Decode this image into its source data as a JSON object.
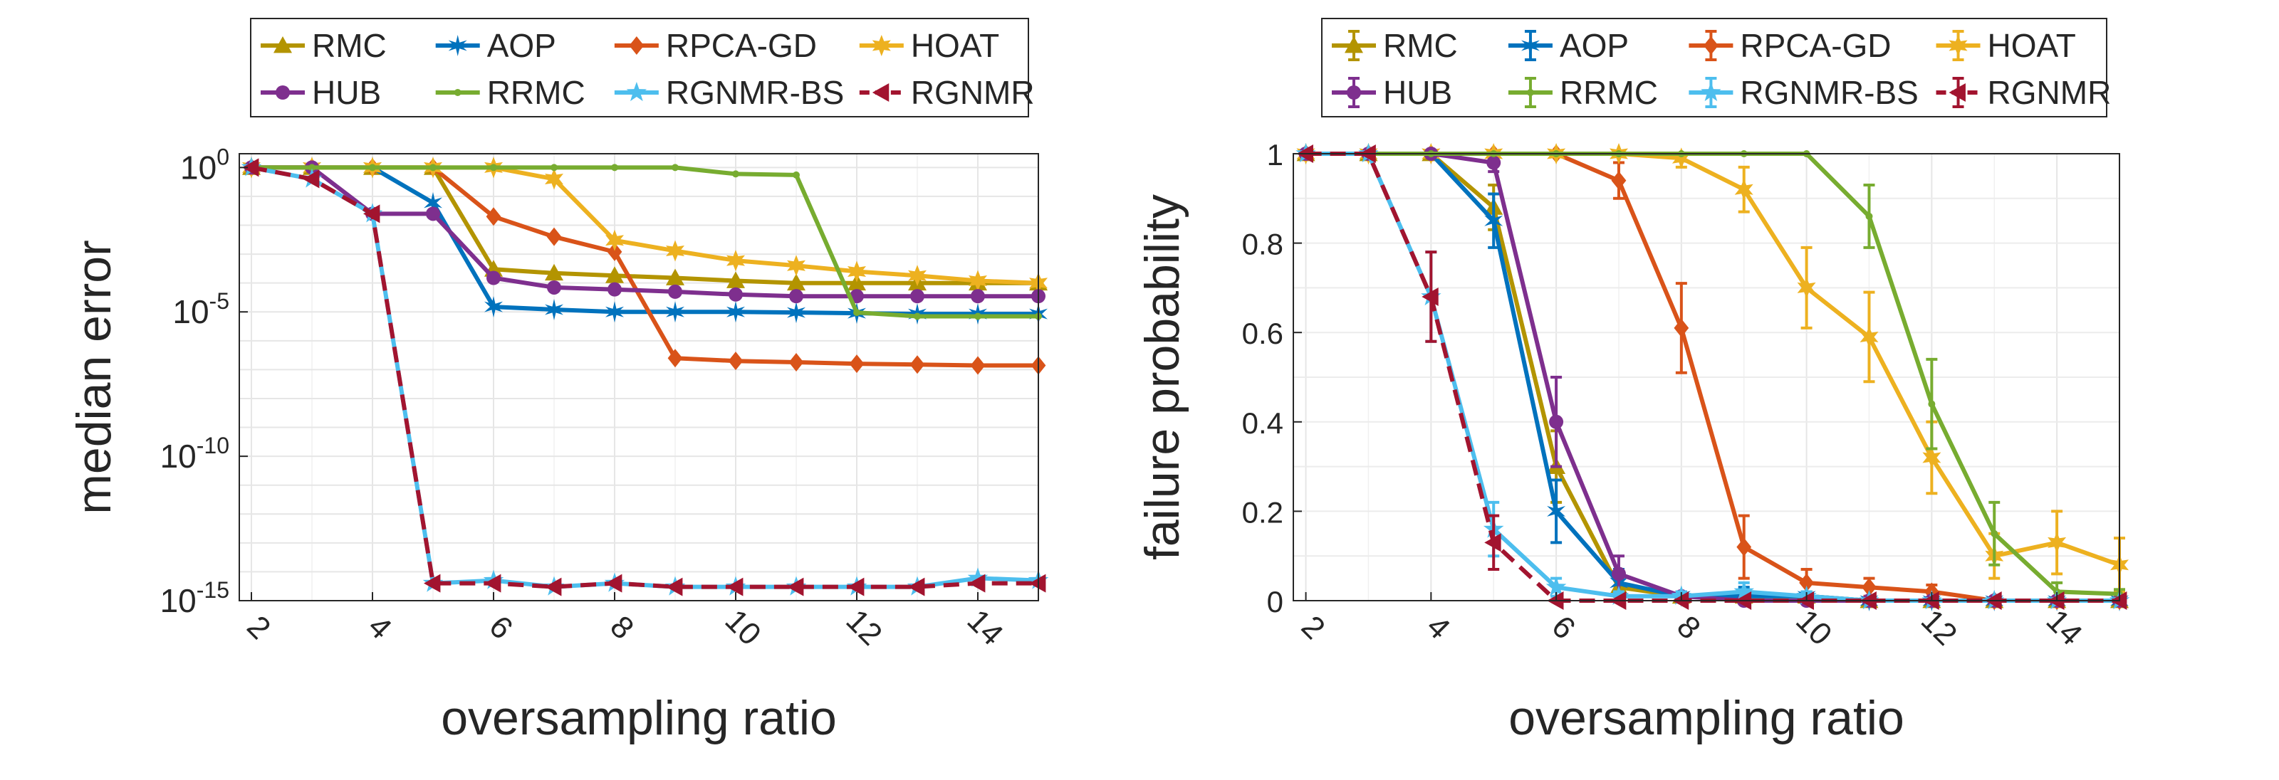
{
  "chart_data": [
    {
      "type": "line",
      "title": "",
      "xlabel": "oversampling ratio",
      "ylabel": "median error",
      "xscale": "linear",
      "yscale": "log",
      "xlim": [
        1.8,
        15
      ],
      "ylim": [
        1e-15,
        3
      ],
      "xticks": [
        2,
        4,
        6,
        8,
        10,
        12,
        14
      ],
      "xticklabels": [
        "2",
        "4",
        "6",
        "8",
        "10",
        "12",
        "14"
      ],
      "yticks": [
        1e-15,
        1e-10,
        1e-05,
        1
      ],
      "yticklabels": [
        {
          "base": "10",
          "exp": "-15"
        },
        {
          "base": "10",
          "exp": "-10"
        },
        {
          "base": "10",
          "exp": "-5"
        },
        {
          "base": "10",
          "exp": "0"
        }
      ],
      "grid": true,
      "legend_position": "top-outside",
      "x": [
        2,
        3,
        4,
        5,
        6,
        7,
        8,
        9,
        10,
        11,
        12,
        13,
        14,
        15
      ],
      "series": [
        {
          "name": "RMC",
          "color": "#b39400",
          "marker": "triangle-up",
          "dash": false,
          "values": [
            1,
            1,
            1,
            1,
            0.0003,
            0.00022,
            0.00018,
            0.00015,
            0.00012,
            0.0001,
            0.0001,
            0.0001,
            0.0001,
            0.0001
          ]
        },
        {
          "name": "AOP",
          "color": "#0072bd",
          "marker": "star",
          "dash": false,
          "values": [
            1,
            1,
            1,
            0.06,
            1.5e-05,
            1.2e-05,
            1e-05,
            1e-05,
            1e-05,
            9.5e-06,
            9e-06,
            8.5e-06,
            8.5e-06,
            8.5e-06
          ]
        },
        {
          "name": "RPCA-GD",
          "color": "#d95319",
          "marker": "diamond",
          "dash": false,
          "values": [
            1,
            1,
            1,
            1,
            0.02,
            0.004,
            0.0012,
            2.5e-07,
            2e-07,
            1.8e-07,
            1.6e-07,
            1.5e-07,
            1.4e-07,
            1.4e-07
          ]
        },
        {
          "name": "HOAT",
          "color": "#edb120",
          "marker": "hexagram",
          "dash": false,
          "values": [
            1,
            1,
            1,
            1,
            1,
            0.4,
            0.003,
            0.0013,
            0.0006,
            0.0004,
            0.00025,
            0.00018,
            0.00012,
            0.0001
          ]
        },
        {
          "name": "HUB",
          "color": "#7e2f8e",
          "marker": "circle",
          "dash": false,
          "values": [
            1,
            1,
            0.025,
            0.025,
            0.00015,
            7e-05,
            6e-05,
            5e-05,
            4e-05,
            3.5e-05,
            3.5e-05,
            3.5e-05,
            3.5e-05,
            3.5e-05
          ]
        },
        {
          "name": "RRMC",
          "color": "#77ac30",
          "marker": "point",
          "dash": false,
          "values": [
            1,
            1,
            1,
            1,
            1,
            1,
            1,
            1,
            0.6,
            0.55,
            9.5e-06,
            7e-06,
            7e-06,
            7e-06
          ]
        },
        {
          "name": "RGNMR-BS",
          "color": "#4dbeee",
          "marker": "pentagram",
          "dash": false,
          "values": [
            1,
            0.4,
            0.025,
            4e-15,
            5e-15,
            3e-15,
            4e-15,
            3e-15,
            3e-15,
            3e-15,
            3e-15,
            3e-15,
            6e-15,
            5e-15
          ]
        },
        {
          "name": "RGNMR",
          "color": "#a2142f",
          "marker": "triangle-left",
          "dash": true,
          "values": [
            1,
            0.4,
            0.025,
            4e-15,
            4e-15,
            3e-15,
            4e-15,
            3e-15,
            3e-15,
            3e-15,
            3e-15,
            3e-15,
            4e-15,
            4e-15
          ]
        }
      ],
      "legend_columns": 4,
      "legend_order": [
        "RMC",
        "AOP",
        "RPCA-GD",
        "HOAT",
        "HUB",
        "RRMC",
        "RGNMR-BS",
        "RGNMR"
      ]
    },
    {
      "type": "line",
      "title": "",
      "xlabel": "oversampling ratio",
      "ylabel": "failure probability",
      "xscale": "linear",
      "yscale": "linear",
      "xlim": [
        1.8,
        15
      ],
      "ylim": [
        0,
        1
      ],
      "xticks": [
        2,
        4,
        6,
        8,
        10,
        12,
        14
      ],
      "xticklabels": [
        "2",
        "4",
        "6",
        "8",
        "10",
        "12",
        "14"
      ],
      "yticks": [
        0,
        0.2,
        0.4,
        0.6,
        0.8,
        1
      ],
      "yticklabels": [
        "0",
        "0.2",
        "0.4",
        "0.6",
        "0.8",
        "1"
      ],
      "grid": true,
      "legend_position": "top-outside",
      "error_bars": true,
      "x": [
        2,
        3,
        4,
        5,
        6,
        7,
        8,
        9,
        10,
        11,
        12,
        13,
        14,
        15
      ],
      "series": [
        {
          "name": "RMC",
          "color": "#b39400",
          "marker": "triangle-up",
          "dash": false,
          "values": [
            1,
            1,
            1,
            0.88,
            0.3,
            0.03,
            0.01,
            0.01,
            0.01,
            0,
            0,
            0,
            0,
            0
          ],
          "errors": [
            0,
            0,
            0,
            0.05,
            0.08,
            0.02,
            0.01,
            0.01,
            0.01,
            0,
            0,
            0,
            0,
            0
          ]
        },
        {
          "name": "AOP",
          "color": "#0072bd",
          "marker": "star",
          "dash": false,
          "values": [
            1,
            1,
            1,
            0.85,
            0.2,
            0.04,
            0.01,
            0.01,
            0.01,
            0,
            0,
            0,
            0,
            0
          ],
          "errors": [
            0,
            0,
            0,
            0.06,
            0.07,
            0.03,
            0.01,
            0.02,
            0.01,
            0,
            0,
            0,
            0,
            0
          ]
        },
        {
          "name": "RPCA-GD",
          "color": "#d95319",
          "marker": "diamond",
          "dash": false,
          "values": [
            1,
            1,
            1,
            1,
            1,
            0.94,
            0.61,
            0.12,
            0.04,
            0.03,
            0.02,
            0,
            0,
            0
          ],
          "errors": [
            0,
            0,
            0,
            0,
            0,
            0.04,
            0.1,
            0.07,
            0.03,
            0.02,
            0.015,
            0,
            0,
            0
          ]
        },
        {
          "name": "HOAT",
          "color": "#edb120",
          "marker": "hexagram",
          "dash": false,
          "values": [
            1,
            1,
            1,
            1,
            1,
            1,
            0.99,
            0.92,
            0.7,
            0.59,
            0.32,
            0.1,
            0.13,
            0.08
          ],
          "errors": [
            0,
            0,
            0,
            0,
            0,
            0,
            0.02,
            0.05,
            0.09,
            0.1,
            0.08,
            0.05,
            0.07,
            0.06
          ]
        },
        {
          "name": "HUB",
          "color": "#7e2f8e",
          "marker": "circle",
          "dash": false,
          "values": [
            1,
            1,
            1,
            0.98,
            0.4,
            0.06,
            0.01,
            0,
            0,
            0,
            0,
            0,
            0,
            0
          ],
          "errors": [
            0,
            0,
            0,
            0.02,
            0.1,
            0.04,
            0.01,
            0,
            0,
            0,
            0,
            0,
            0,
            0
          ]
        },
        {
          "name": "RRMC",
          "color": "#77ac30",
          "marker": "point",
          "dash": false,
          "values": [
            1,
            1,
            1,
            1,
            1,
            1,
            1,
            1,
            1,
            0.86,
            0.44,
            0.15,
            0.02,
            0.015
          ],
          "errors": [
            0,
            0,
            0,
            0,
            0,
            0,
            0,
            0,
            0,
            0.07,
            0.1,
            0.07,
            0.02,
            0.01
          ]
        },
        {
          "name": "RGNMR-BS",
          "color": "#4dbeee",
          "marker": "pentagram",
          "dash": false,
          "values": [
            1,
            1,
            0.68,
            0.16,
            0.03,
            0.01,
            0.01,
            0.02,
            0.01,
            0,
            0,
            0,
            0,
            0
          ],
          "errors": [
            0,
            0,
            0.1,
            0.06,
            0.02,
            0.01,
            0.01,
            0.02,
            0.01,
            0,
            0,
            0,
            0,
            0
          ]
        },
        {
          "name": "RGNMR",
          "color": "#a2142f",
          "marker": "triangle-left",
          "dash": true,
          "values": [
            1,
            1,
            0.68,
            0.13,
            0,
            0,
            0,
            0,
            0,
            0,
            0,
            0,
            0,
            0
          ],
          "errors": [
            0,
            0,
            0.1,
            0.06,
            0,
            0,
            0,
            0,
            0,
            0,
            0,
            0,
            0,
            0
          ]
        }
      ],
      "legend_columns": 4,
      "legend_order": [
        "RMC",
        "AOP",
        "RPCA-GD",
        "HOAT",
        "HUB",
        "RRMC",
        "RGNMR-BS",
        "RGNMR"
      ]
    }
  ]
}
